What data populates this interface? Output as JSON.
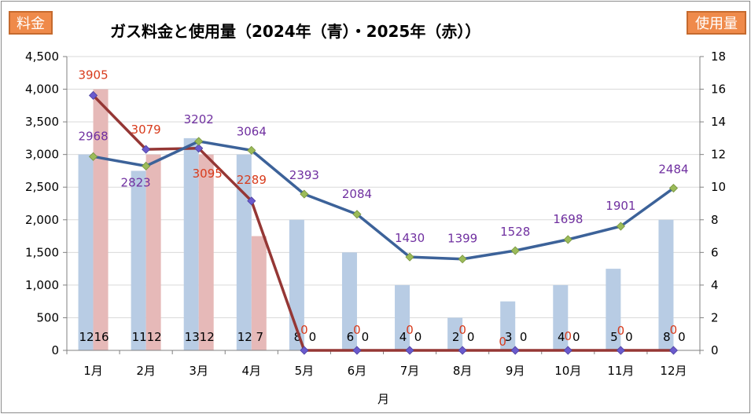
{
  "title": "ガス料金と使用量（2024年（青）・2025年（赤））",
  "left_unit_label": "料金",
  "right_unit_label": "使用量",
  "colors": {
    "bar_2024": "#b8cce4",
    "bar_2025": "#e6b9b8",
    "line_2024": "#3c6299",
    "line_2025": "#953735",
    "label_2024": "#7030a0",
    "label_2025": "#d83b1c",
    "badge_fill": "#ef8a4a",
    "grid": "#d9d9d9"
  },
  "chart_data": {
    "type": "bar",
    "categories": [
      "1月",
      "2月",
      "3月",
      "4月",
      "5月",
      "6月",
      "7月",
      "8月",
      "9月",
      "10月",
      "11月",
      "12月"
    ],
    "xlabel": "月",
    "ylabel_left": "料金",
    "ylabel_right": "使用量",
    "y_left": {
      "min": 0,
      "max": 4500,
      "ticks": [
        "0",
        "500",
        "1,000",
        "1,500",
        "2,000",
        "2,500",
        "3,000",
        "3,500",
        "4,000",
        "4,500"
      ]
    },
    "y_right": {
      "min": 0,
      "max": 18,
      "ticks": [
        "0",
        "2",
        "4",
        "6",
        "8",
        "10",
        "12",
        "14",
        "16",
        "18"
      ]
    },
    "grid": true,
    "usage_2024": [
      12,
      11,
      13,
      12,
      8,
      6,
      4,
      2,
      3,
      4,
      5,
      8
    ],
    "usage_2025": [
      16,
      12,
      12,
      7,
      0,
      0,
      0,
      0,
      0,
      0,
      0,
      0
    ],
    "usage_labels_2024": [
      "12",
      "11",
      "13",
      "12",
      "8",
      "6",
      "4",
      "2",
      "3",
      "4",
      "5",
      "8"
    ],
    "usage_labels_2025": [
      "16",
      "12",
      "12",
      "7",
      "0",
      "0",
      "0",
      "0",
      "0",
      "0",
      "0",
      "0"
    ],
    "cost_2024": [
      2968,
      2823,
      3202,
      3064,
      2393,
      2084,
      1430,
      1399,
      1528,
      1698,
      1901,
      2484
    ],
    "cost_2025": [
      3905,
      3079,
      3095,
      2289,
      0,
      0,
      0,
      0,
      0,
      0,
      0,
      0
    ],
    "cost_labels_2024": [
      "2968",
      "2823",
      "3202",
      "3064",
      "2393",
      "2084",
      "1430",
      "1399",
      "1528",
      "1698",
      "1901",
      "2484"
    ],
    "cost_labels_2025": [
      "3905",
      "3079",
      "3095",
      "2289",
      "0",
      "0",
      "0",
      "0",
      "0",
      "0",
      "0",
      "0"
    ]
  }
}
